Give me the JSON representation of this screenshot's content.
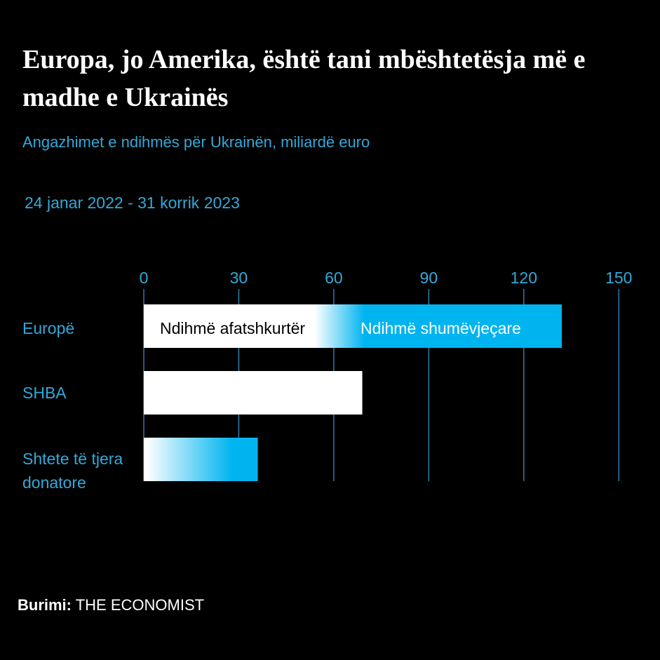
{
  "header": {
    "title": "Europa, jo Amerika, është tani mbështetësja më e madhe e Ukrainës",
    "subtitle": "Angazhimet e ndihmës për Ukrainën, miliardë euro",
    "date_range": "24 janar 2022 - 31 korrik 2023"
  },
  "footer": {
    "source_label": "Burimi:",
    "source_value": "THE ECONOMIST"
  },
  "colors": {
    "background": "#000000",
    "accent": "#00b4f0",
    "bar_base": "#ffffff",
    "text_accent": "#34a8d8",
    "grid": "#2f8fbf"
  },
  "chart_data": {
    "type": "bar",
    "orientation": "horizontal",
    "stacked": true,
    "categories": [
      "Europë",
      "SHBA",
      "Shtete të tjera donatore"
    ],
    "series": [
      {
        "name": "Ndihmë afatshkurtër",
        "color": "#ffffff",
        "values": [
          65,
          69,
          25
        ]
      },
      {
        "name": "Ndihmë shumëvjeçare",
        "color": "#00b4f0",
        "values": [
          67,
          0,
          11
        ]
      }
    ],
    "totals": [
      132,
      69,
      36
    ],
    "xlim": [
      0,
      150
    ],
    "xticks": [
      0,
      30,
      60,
      90,
      120,
      150
    ],
    "xtick_labels": [
      "0",
      "30",
      "60",
      "90",
      "120",
      "150"
    ],
    "axis_position": "top",
    "grid": true,
    "legend": "inside-first-bar"
  }
}
